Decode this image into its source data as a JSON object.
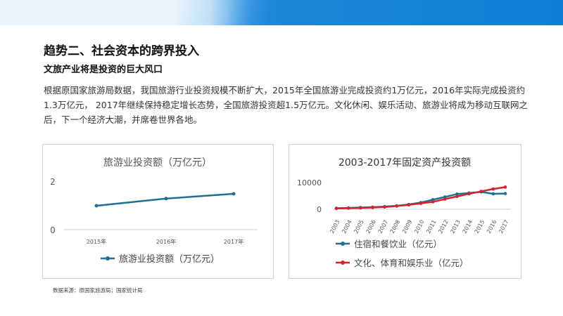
{
  "page": {
    "heading": "趋势二、社会资本的跨界投入",
    "subheading": "文旅产业将是投资的巨大风口",
    "body": "根据原国家旅游局数据，我国旅游行业投资规模不断扩大，2015年全国旅游业完成投资约1万亿元，2016年实际完成投资约1.3万亿元， 2017年继续保持稳定增长态势，全国旅游投资超1.5万亿元。文化休闲、娱乐活动、旅游业将成为移动互联网之后，下一个经济大潮，并席卷世界各地。",
    "source": "数据来源：原国家旅游局；国家统计局",
    "accent_color": "#1e88d9"
  },
  "chart_data": [
    {
      "type": "line",
      "title": "旅游业投资额（万亿元）",
      "categories": [
        "2015年",
        "2016年",
        "2017年"
      ],
      "series": [
        {
          "name": "旅游业投资额（万亿元）",
          "values": [
            1.0,
            1.3,
            1.5
          ],
          "color": "#1f6f93"
        }
      ],
      "yticks": [
        "2",
        "0"
      ],
      "ylim": [
        0,
        2
      ],
      "grid": false,
      "legend": "bottom"
    },
    {
      "type": "line",
      "title": "2003-2017年固定资产投资额",
      "categories": [
        "2003",
        "2004",
        "2005",
        "2006",
        "2007",
        "2008",
        "2009",
        "2010",
        "2011",
        "2012",
        "2013",
        "2014",
        "2015",
        "2016",
        "2017"
      ],
      "series": [
        {
          "name": "住宿和餐饮业（亿元）",
          "values": [
            400,
            500,
            650,
            800,
            1000,
            1300,
            1800,
            2500,
            3600,
            4600,
            5700,
            6100,
            6500,
            5800,
            5900
          ],
          "color": "#1f6f93"
        },
        {
          "name": "文化、体育和娱乐业（亿元）",
          "values": [
            300,
            400,
            500,
            650,
            850,
            1200,
            1650,
            2200,
            2800,
            3800,
            4800,
            5800,
            6700,
            7600,
            8300
          ],
          "color": "#d0242e"
        }
      ],
      "yticks": [
        "10000",
        "0"
      ],
      "ylim": [
        0,
        10000
      ],
      "grid": false,
      "legend": "bottom"
    }
  ]
}
